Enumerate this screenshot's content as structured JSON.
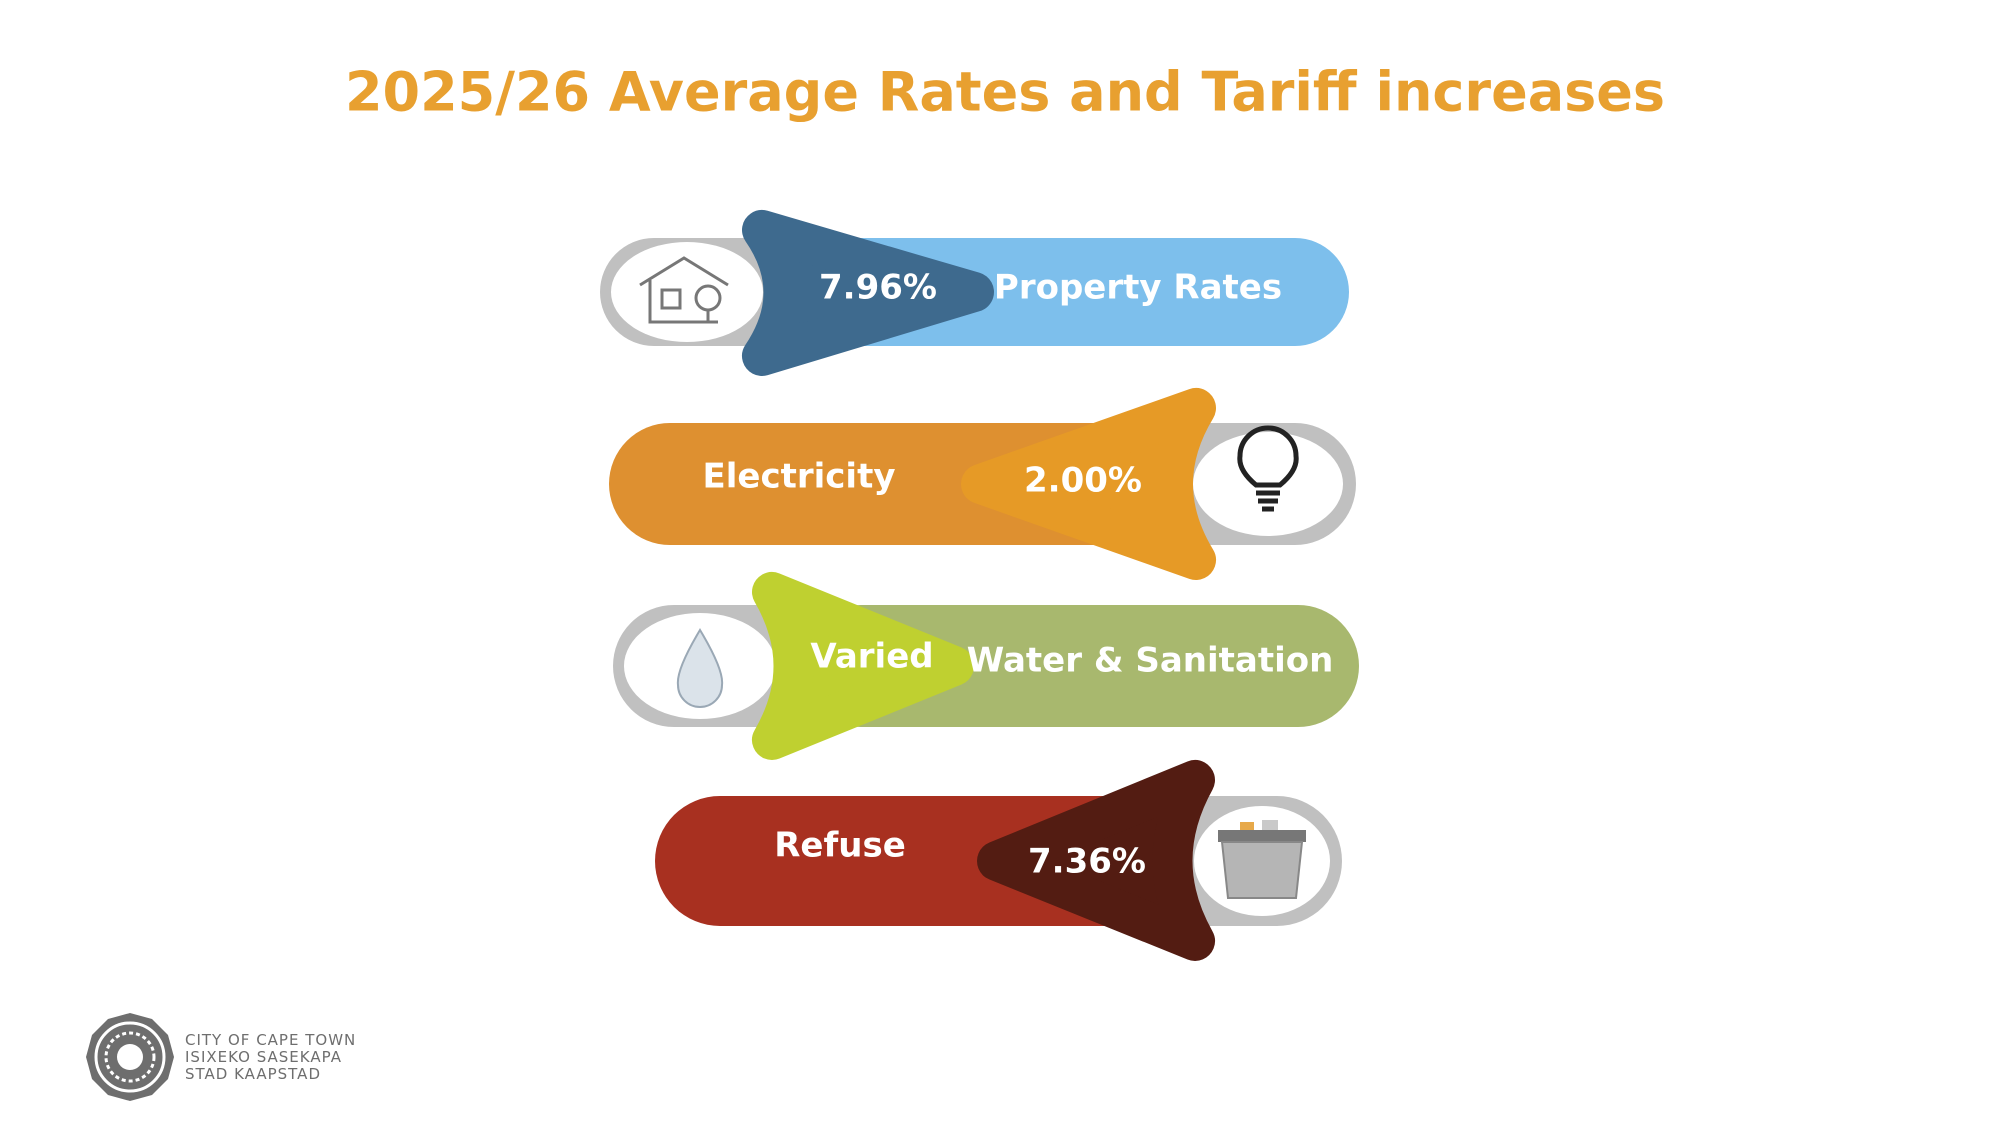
{
  "title": "2025/26 Average Rates and Tariff increases",
  "colors": {
    "title": "#e8a030"
  },
  "items": [
    {
      "label": "Property Rates",
      "value": "7.96%",
      "icon": "house-search-icon",
      "pill": "#7dbfec",
      "arrow": "#3e6a8e"
    },
    {
      "label": "Electricity",
      "value": "2.00%",
      "icon": "lightbulb-icon",
      "pill": "#de9030",
      "arrow": "#e69a26"
    },
    {
      "label": "Water & Sanitation",
      "value": "Varied",
      "icon": "water-drop-icon",
      "pill": "#a8b86e",
      "arrow": "#bfd030"
    },
    {
      "label": "Refuse",
      "value": "7.36%",
      "icon": "refuse-bin-icon",
      "pill": "#a83020",
      "arrow": "#531c12"
    }
  ],
  "logo": {
    "lines": [
      "CITY OF CAPE TOWN",
      "ISIXEKO SASEKAPA",
      "STAD KAAPSTAD"
    ]
  }
}
